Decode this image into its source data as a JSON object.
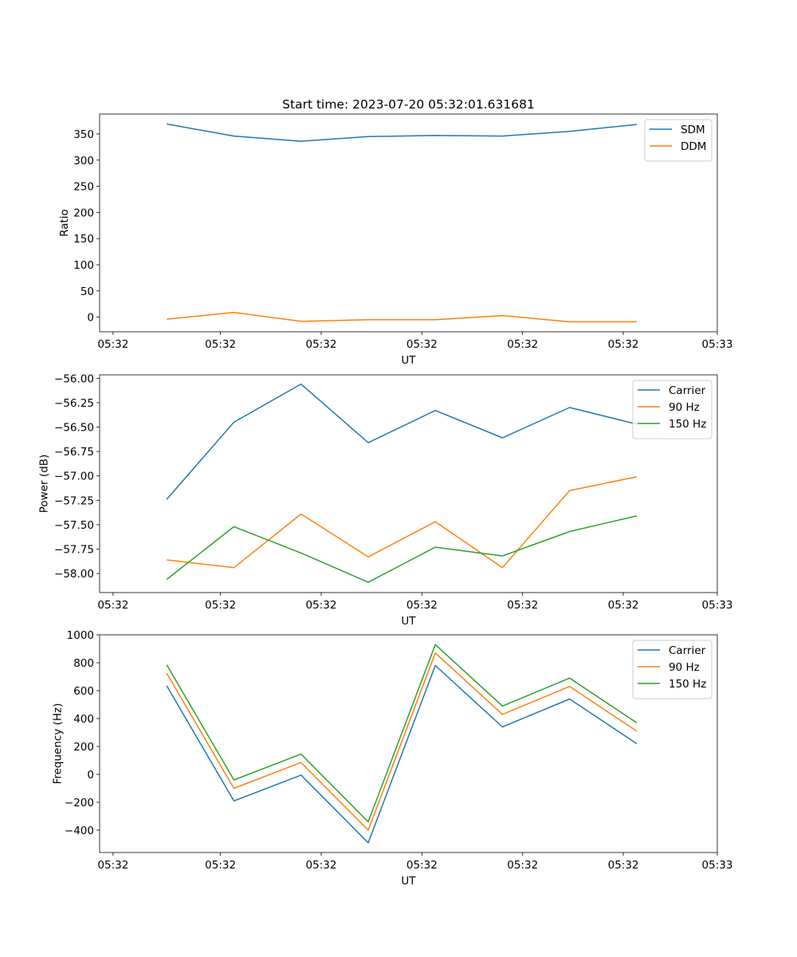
{
  "chart_data": [
    {
      "type": "line",
      "title": "Start time: 2023-07-20 05:32:01.631681",
      "xlabel": "UT",
      "ylabel": "Ratio",
      "x_index": [
        1,
        2,
        3,
        4,
        5,
        6,
        7,
        8
      ],
      "xlim": [
        0,
        9.2
      ],
      "x_ticks": [
        0.2,
        1.8,
        3.3,
        4.8,
        6.3,
        7.8,
        9.2
      ],
      "x_tick_labels": [
        "05:32",
        "05:32",
        "05:32",
        "05:32",
        "05:32",
        "05:32",
        "05:33"
      ],
      "ylim": [
        -28,
        388
      ],
      "y_ticks": [
        0,
        50,
        100,
        150,
        200,
        250,
        300,
        350
      ],
      "y_tick_labels": [
        "0",
        "50",
        "100",
        "150",
        "200",
        "250",
        "300",
        "350"
      ],
      "grid": false,
      "legend_position": "top-right",
      "series": [
        {
          "name": "SDM",
          "color": "#1f77b4",
          "values": [
            369,
            346,
            336,
            345,
            347,
            346,
            355,
            368
          ]
        },
        {
          "name": "DDM",
          "color": "#ff7f0e",
          "values": [
            -4,
            9,
            -8,
            -5,
            -5,
            3,
            -9,
            -9
          ]
        }
      ]
    },
    {
      "type": "line",
      "title": "",
      "xlabel": "UT",
      "ylabel": "Power (dB)",
      "x_index": [
        1,
        2,
        3,
        4,
        5,
        6,
        7,
        8
      ],
      "xlim": [
        0,
        9.2
      ],
      "x_ticks": [
        0.2,
        1.8,
        3.3,
        4.8,
        6.3,
        7.8,
        9.2
      ],
      "x_tick_labels": [
        "05:32",
        "05:32",
        "05:32",
        "05:32",
        "05:32",
        "05:32",
        "05:33"
      ],
      "ylim": [
        -58.195,
        -55.965
      ],
      "y_ticks": [
        -58.0,
        -57.75,
        -57.5,
        -57.25,
        -57.0,
        -56.75,
        -56.5,
        -56.25,
        -56.0
      ],
      "y_tick_labels": [
        "−58.00",
        "−57.75",
        "−57.50",
        "−57.25",
        "−57.00",
        "−56.75",
        "−56.50",
        "−56.25",
        "−56.00"
      ],
      "grid": false,
      "legend_position": "top-right",
      "series": [
        {
          "name": "Carrier",
          "color": "#1f77b4",
          "values": [
            -57.24,
            -56.45,
            -56.06,
            -56.66,
            -56.33,
            -56.61,
            -56.3,
            -56.47
          ]
        },
        {
          "name": "90 Hz",
          "color": "#ff7f0e",
          "values": [
            -57.86,
            -57.94,
            -57.39,
            -57.83,
            -57.47,
            -57.94,
            -57.15,
            -57.01
          ]
        },
        {
          "name": "150 Hz",
          "color": "#2ca02c",
          "values": [
            -58.06,
            -57.52,
            -57.79,
            -58.09,
            -57.73,
            -57.82,
            -57.57,
            -57.41
          ]
        }
      ]
    },
    {
      "type": "line",
      "title": "",
      "xlabel": "UT",
      "ylabel": "Frequency (Hz)",
      "x_index": [
        1,
        2,
        3,
        4,
        5,
        6,
        7,
        8
      ],
      "xlim": [
        0,
        9.2
      ],
      "x_ticks": [
        0.2,
        1.8,
        3.3,
        4.8,
        6.3,
        7.8,
        9.2
      ],
      "x_tick_labels": [
        "05:32",
        "05:32",
        "05:32",
        "05:32",
        "05:32",
        "05:32",
        "05:33"
      ],
      "ylim": [
        -560,
        1000
      ],
      "y_ticks": [
        -400,
        -200,
        0,
        200,
        400,
        600,
        800,
        1000
      ],
      "y_tick_labels": [
        "−400",
        "−200",
        "0",
        "200",
        "400",
        "600",
        "800",
        "1000"
      ],
      "grid": false,
      "legend_position": "top-right",
      "series": [
        {
          "name": "Carrier",
          "color": "#1f77b4",
          "values": [
            635,
            -190,
            -5,
            -490,
            780,
            340,
            540,
            220
          ]
        },
        {
          "name": "90 Hz",
          "color": "#ff7f0e",
          "values": [
            725,
            -100,
            85,
            -400,
            870,
            430,
            630,
            310
          ]
        },
        {
          "name": "150 Hz",
          "color": "#2ca02c",
          "values": [
            785,
            -40,
            145,
            -340,
            930,
            490,
            690,
            370
          ]
        }
      ]
    }
  ]
}
